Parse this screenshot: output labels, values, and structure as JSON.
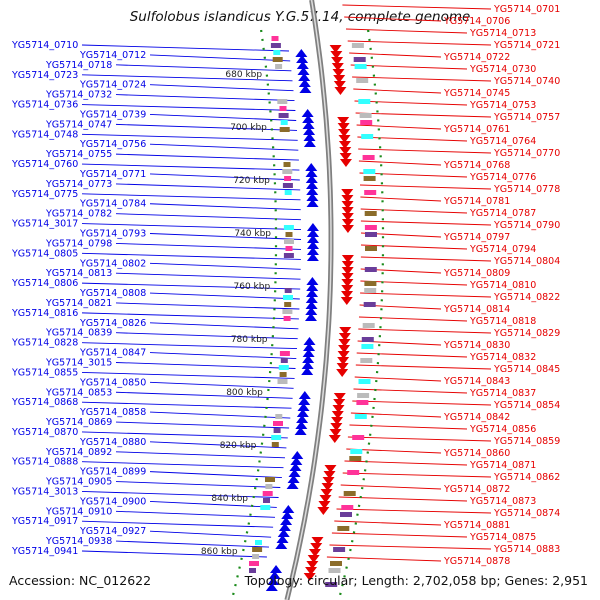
{
  "title": "Sulfolobus islandicus Y.G.57.14, complete genome",
  "footer": {
    "accession": "Accession: NC_012622",
    "summary": "Topology: circular; Length: 2,702,058 bp; Genes: 2,951"
  },
  "colors": {
    "minus_strand": "#0000e6",
    "plus_strand": "#e60000",
    "backbone": "#808080",
    "tick_dots": "#1a8a1a",
    "cds_gc_mix": [
      "#33ffff",
      "#6a3d9a",
      "#ff3399",
      "#bbbbbb",
      "#8b6c2a"
    ]
  },
  "scale_labels": [
    "680 kbp",
    "700 kbp",
    "720 kbp",
    "740 kbp",
    "760 kbp",
    "780 kbp",
    "800 kbp",
    "820 kbp",
    "840 kbp",
    "860 kbp"
  ],
  "left_genes": [
    "YG5714_0710",
    "YG5714_0712",
    "YG5714_0718",
    "YG5714_0723",
    "YG5714_0724",
    "YG5714_0732",
    "YG5714_0736",
    "YG5714_0739",
    "YG5714_0747",
    "YG5714_0748",
    "YG5714_0756",
    "YG5714_0755",
    "YG5714_0760",
    "YG5714_0771",
    "YG5714_0773",
    "YG5714_0775",
    "YG5714_0784",
    "YG5714_0782",
    "YG5714_3017",
    "YG5714_0793",
    "YG5714_0798",
    "YG5714_0805",
    "YG5714_0802",
    "YG5714_0813",
    "YG5714_0806",
    "YG5714_0808",
    "YG5714_0821",
    "YG5714_0816",
    "YG5714_0826",
    "YG5714_0839",
    "YG5714_0828",
    "YG5714_0847",
    "YG5714_3015",
    "YG5714_0855",
    "YG5714_0850",
    "YG5714_0853",
    "YG5714_0868",
    "YG5714_0858",
    "YG5714_0869",
    "YG5714_0870",
    "YG5714_0880",
    "YG5714_0892",
    "YG5714_0888",
    "YG5714_0899",
    "YG5714_0905",
    "YG5714_3013",
    "YG5714_0900",
    "YG5714_0910",
    "YG5714_0917",
    "YG5714_0927",
    "YG5714_0938",
    "YG5714_0941"
  ],
  "right_genes": [
    "YG5714_0701",
    "YG5714_0706",
    "YG5714_0713",
    "YG5714_0721",
    "YG5714_0722",
    "YG5714_0730",
    "YG5714_0740",
    "YG5714_0745",
    "YG5714_0753",
    "YG5714_0757",
    "YG5714_0761",
    "YG5714_0764",
    "YG5714_0770",
    "YG5714_0768",
    "YG5714_0776",
    "YG5714_0778",
    "YG5714_0781",
    "YG5714_0787",
    "YG5714_0790",
    "YG5714_0797",
    "YG5714_0794",
    "YG5714_0804",
    "YG5714_0809",
    "YG5714_0810",
    "YG5714_0822",
    "YG5714_0814",
    "YG5714_0818",
    "YG5714_0829",
    "YG5714_0830",
    "YG5714_0832",
    "YG5714_0845",
    "YG5714_0843",
    "YG5714_0837",
    "YG5714_0854",
    "YG5714_0842",
    "YG5714_0856",
    "YG5714_0859",
    "YG5714_0860",
    "YG5714_0871",
    "YG5714_0862",
    "YG5714_0872",
    "YG5714_0873",
    "YG5714_0874",
    "YG5714_0881",
    "YG5714_0875",
    "YG5714_0883",
    "YG5714_0878"
  ]
}
